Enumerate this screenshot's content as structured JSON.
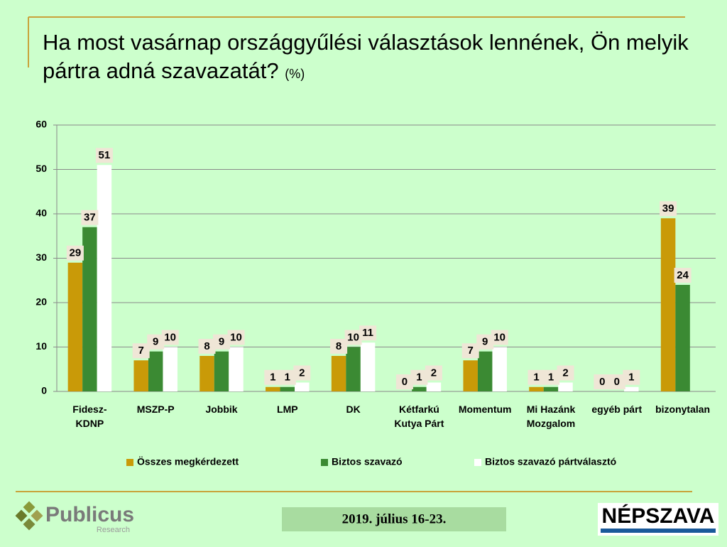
{
  "chart_data": {
    "type": "bar",
    "title": "Ha most vasárnap országgyűlési választások lennének, Ön melyik pártra adná szavazatát?",
    "unit": "(%)",
    "categories": [
      "Fidesz-\nKDNP",
      "MSZP-P",
      "Jobbik",
      "LMP",
      "DK",
      "Kétfarkú\nKutya Párt",
      "Momentum",
      "Mi Hazánk\nMozgalom",
      "egyéb párt",
      "bizonytalan"
    ],
    "series": [
      {
        "name": "Összes megkérdezett",
        "color": "#c99a08",
        "values": [
          29,
          7,
          8,
          1,
          8,
          0,
          7,
          1,
          0,
          39
        ]
      },
      {
        "name": "Biztos szavazó",
        "color": "#3b8a33",
        "values": [
          37,
          9,
          9,
          1,
          10,
          1,
          9,
          1,
          0,
          24
        ]
      },
      {
        "name": "Biztos szavazó pártválasztó",
        "color": "#ffffff",
        "values": [
          51,
          10,
          10,
          2,
          11,
          2,
          10,
          2,
          1,
          null
        ]
      }
    ],
    "ylim": [
      0,
      60
    ],
    "yticks": [
      0,
      10,
      20,
      30,
      40,
      50,
      60
    ],
    "grid": true,
    "legend": "bottom"
  },
  "footer": {
    "logo": "Publicus",
    "logo_sub": "Research",
    "date": "2019. július 16-23.",
    "newspaper": "NÉPSZAVA"
  }
}
